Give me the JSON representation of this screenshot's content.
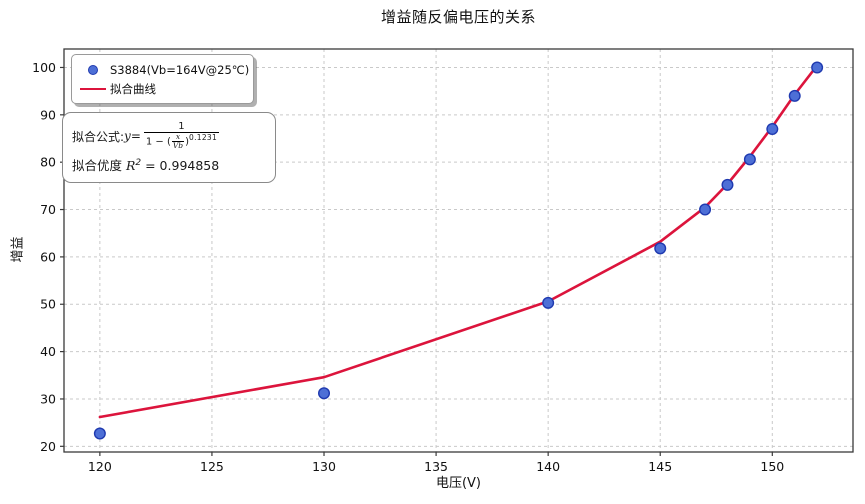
{
  "title": "增益随反偏电压的关系",
  "axes": {
    "xlabel": "电压(V)",
    "ylabel": "增益"
  },
  "legend": {
    "series1_label": "S3884(Vb=164V@25℃)",
    "series2_label": "拟合曲线"
  },
  "annotation": {
    "formula_prefix": "拟合公式: ",
    "formula_lhs": "y",
    "equals": " = ",
    "numerator": "1",
    "denom_prefix": "1 − (",
    "frac_x": "x",
    "frac_vb": "Vb",
    "denom_close": ")",
    "exponent": "0.1231",
    "goodness_prefix": "拟合优度 ",
    "r_symbol": "R",
    "r_sup": "2",
    "goodness_value": " = 0.994858"
  },
  "colors": {
    "marker_fill": "#4d6fd6",
    "marker_edge": "#1f3ab0",
    "fit_line": "#dc143c",
    "grid": "#c9c9c9",
    "spine": "#3a3a3a",
    "tick_text": "#111111"
  },
  "chart_data": {
    "type": "scatter",
    "title": "增益随反偏电压的关系",
    "xlabel": "电压(V)",
    "ylabel": "增益",
    "xlim": [
      118.4,
      153.6
    ],
    "ylim": [
      18.8,
      103.9
    ],
    "x_ticks": [
      120,
      125,
      130,
      135,
      140,
      145,
      150
    ],
    "y_ticks": [
      20,
      30,
      40,
      50,
      60,
      70,
      80,
      90,
      100
    ],
    "grid": true,
    "legend_position": "upper left",
    "series": [
      {
        "name": "S3884(Vb=164V@25℃)",
        "type": "scatter",
        "marker": "circle",
        "color": "#4d6fd6",
        "edge_color": "#1f3ab0",
        "x": [
          120,
          130,
          140,
          145,
          147,
          148,
          149,
          150,
          151,
          152
        ],
        "y": [
          22.7,
          31.2,
          50.3,
          61.8,
          70.0,
          75.2,
          80.6,
          87.0,
          94.0,
          100.0
        ]
      },
      {
        "name": "拟合曲线",
        "type": "line",
        "color": "#dc143c",
        "x": [
          120,
          130,
          140,
          145,
          147,
          148,
          149,
          150,
          151,
          152
        ],
        "y": [
          26.2,
          34.6,
          50.6,
          63.2,
          70.5,
          75.4,
          81.2,
          87.5,
          94.3,
          100.4
        ]
      }
    ],
    "fit_info": {
      "formula": "y = 1 / (1 - (x/Vb)^0.1231)",
      "r_squared": 0.994858
    }
  }
}
